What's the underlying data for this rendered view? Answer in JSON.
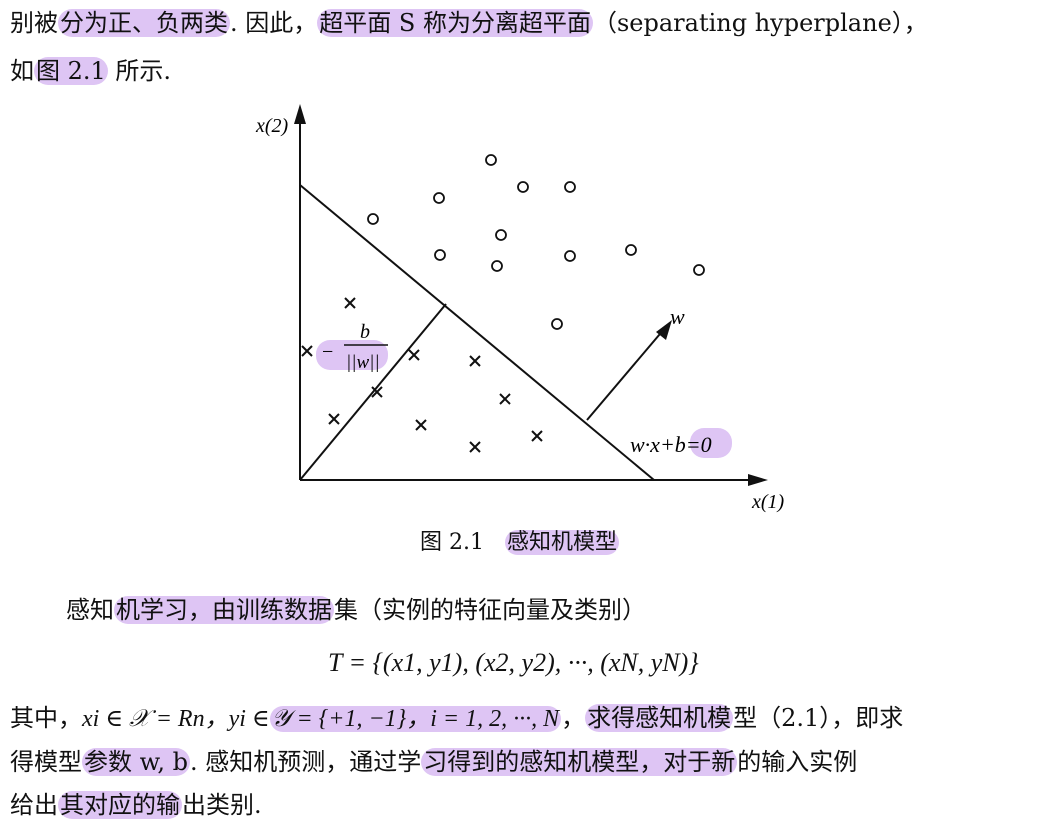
{
  "text_top": {
    "line1_a": "别被",
    "line1_hl1": "分为正、负两类",
    "line1_b": ". 因此，",
    "line1_hl2": "超平面 S 称为分离超平面",
    "line1_c": "（separating hyperplane），",
    "line2_a": "如",
    "line2_hl": "图 2.1",
    "line2_b": " 所示."
  },
  "figure": {
    "y_axis_label": "x(2)",
    "x_axis_label": "x(1)",
    "w_label": "w",
    "b_num": "b",
    "b_den": "||w||",
    "b_minus": "−",
    "equation": "w·x+b=0",
    "caption_num": "图 2.1",
    "caption_title": "感知机模型"
  },
  "text_body": {
    "p1_a": "感知",
    "p1_hl": "机学习，由训练数据",
    "p1_b": "集（实例的特征向量及类别）",
    "formula": "T = {(x1, y1), (x2, y2), ···, (xN, yN)}",
    "p2_a": "其中，",
    "p2_b": "xi ∈ 𝒳 = Rn，yi ∈",
    "p2_hl1": "𝒴 = {+1, −1}，i = 1, 2, ···, N",
    "p2_c": "，",
    "p2_hl2": "求得感知机模",
    "p2_d": "型（2.1），即求",
    "p3_a": "得模型",
    "p3_hl1": "参数 w, b",
    "p3_b": ". 感知机预测，通过学",
    "p3_hl2": "习得到的感知机模型，对于新",
    "p3_c": "的输入实例",
    "p4_a": "给出",
    "p4_hl": "其对应的输",
    "p4_b": "出类别."
  },
  "colors": {
    "highlight": "#c396eb",
    "ink": "#111111"
  }
}
